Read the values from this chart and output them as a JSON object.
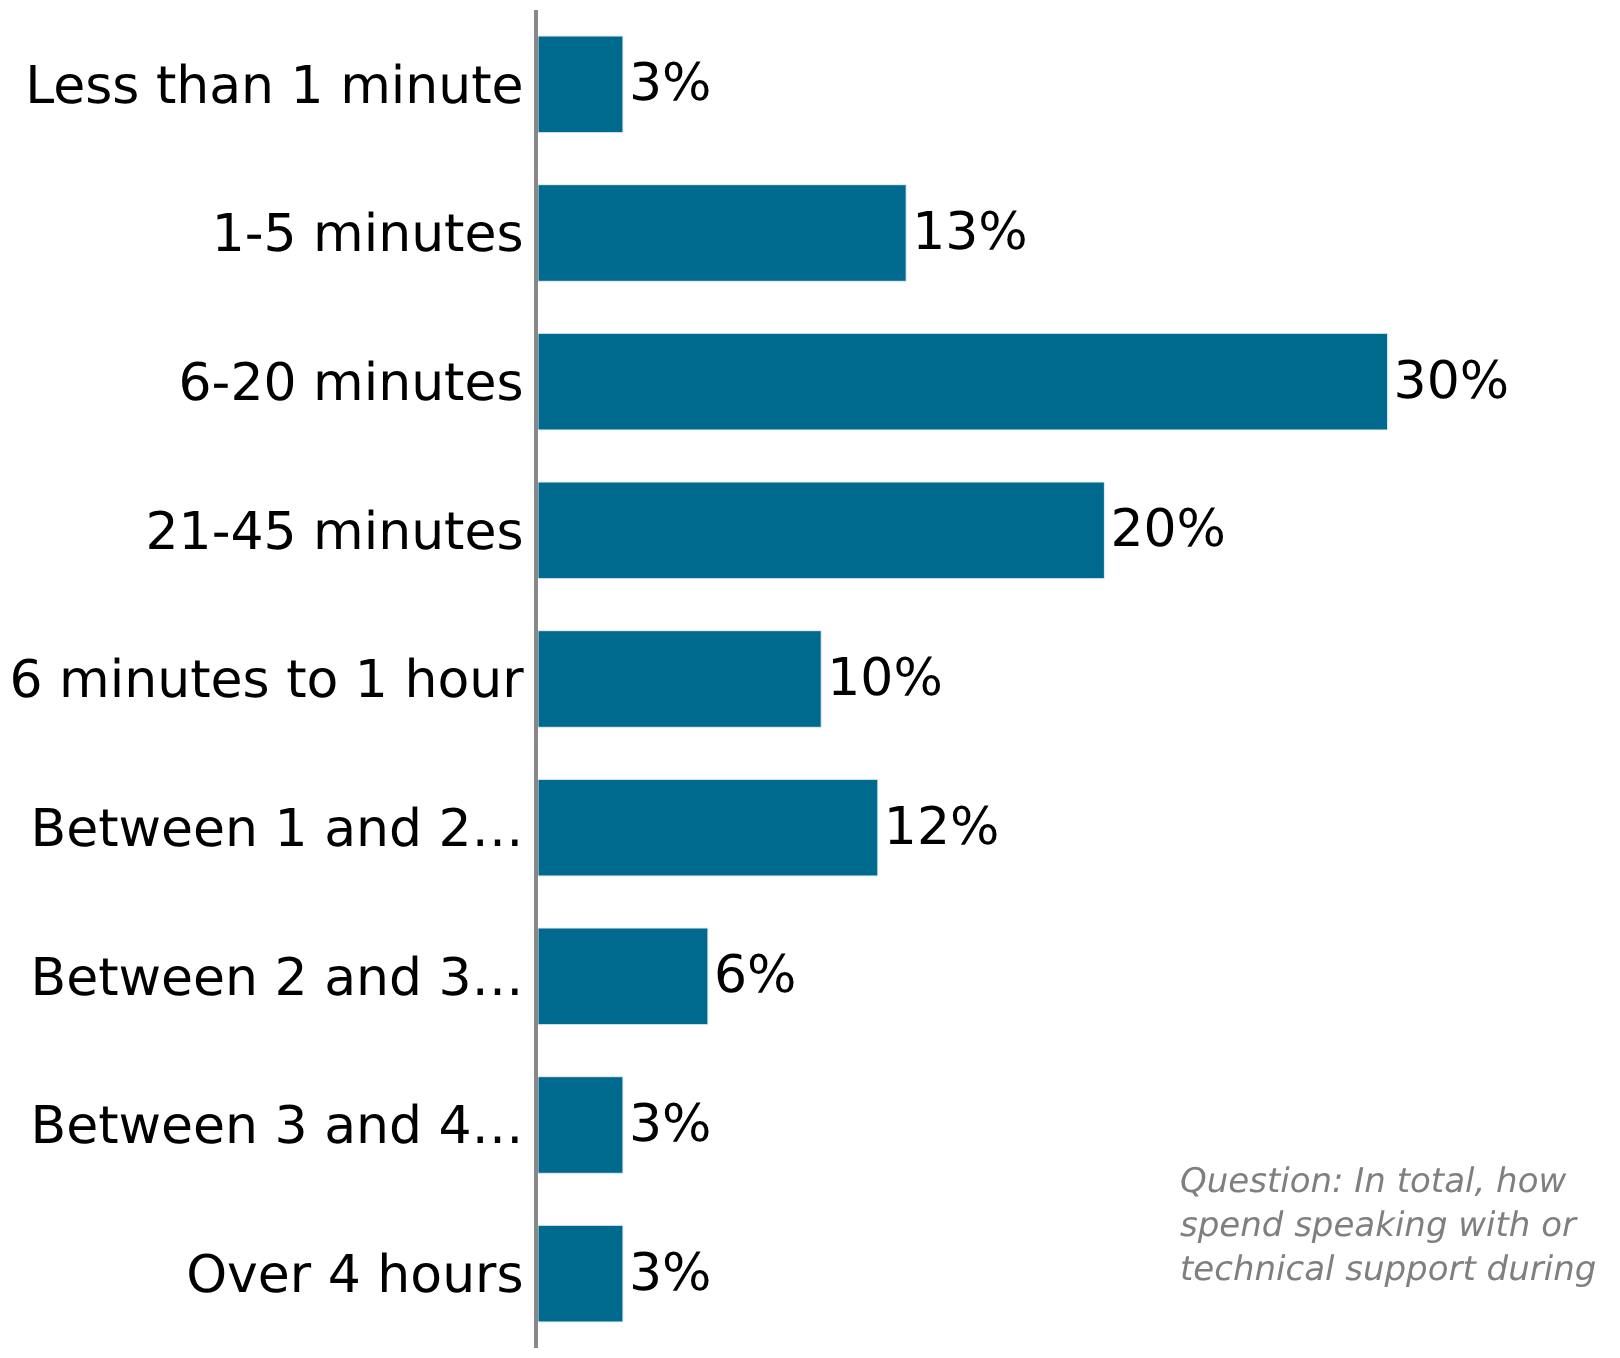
{
  "chart_data": {
    "type": "bar",
    "orientation": "horizontal",
    "categories": [
      "Less than 1 minute",
      "1-5 minutes",
      "6-20 minutes",
      "21-45 minutes",
      "6 minutes to 1 hour",
      "Between 1 and 2…",
      "Between 2 and 3…",
      "Between 3 and 4…",
      "Over 4 hours"
    ],
    "values": [
      3,
      13,
      30,
      20,
      10,
      12,
      6,
      3,
      3
    ],
    "value_labels": [
      "3%",
      "13%",
      "30%",
      "20%",
      "10%",
      "12%",
      "6%",
      "3%",
      "3%"
    ],
    "color": "#006a8e",
    "tick_labels": "y",
    "annotations": [
      "Question: In total, how\nspend speaking with or\ntechnical support during"
    ]
  }
}
